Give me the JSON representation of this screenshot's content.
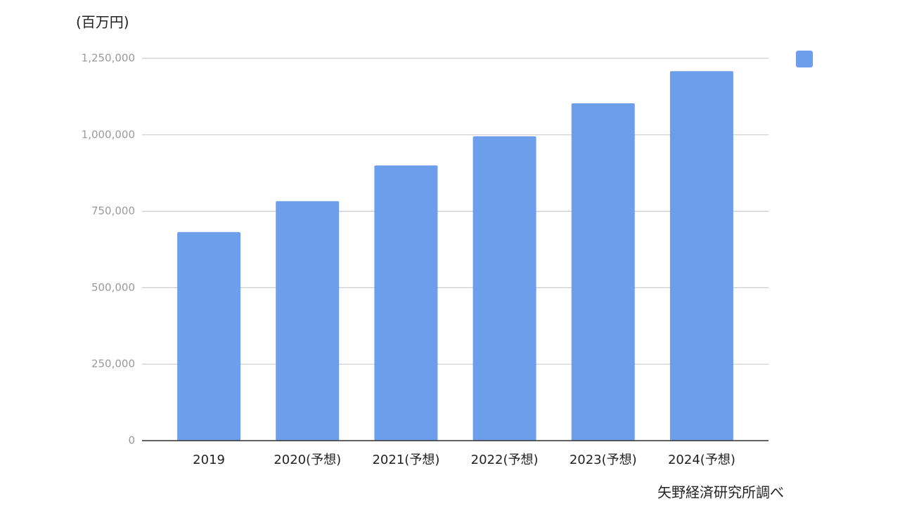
{
  "chart_data": {
    "type": "bar",
    "y_label": "(百万円)",
    "source": "矢野経済研究所調べ",
    "categories": [
      "2019",
      "2020(予想)",
      "2021(予想)",
      "2022(予想)",
      "2023(予想)",
      "2024(予想)"
    ],
    "values": [
      682000,
      783000,
      900000,
      995000,
      1103000,
      1208000
    ],
    "color": "#6d9eeb",
    "ylim": [
      0,
      1250000
    ],
    "yticks": [
      0,
      {
        "value": 250000,
        "label": "250,000"
      },
      {
        "value": 500000,
        "label": "500,000"
      },
      {
        "value": 750000,
        "label": "750,000"
      },
      {
        "value": 1000000,
        "label": "1,000,000"
      },
      {
        "value": 1250000,
        "label": "1,250,000"
      }
    ],
    "grid": true
  }
}
